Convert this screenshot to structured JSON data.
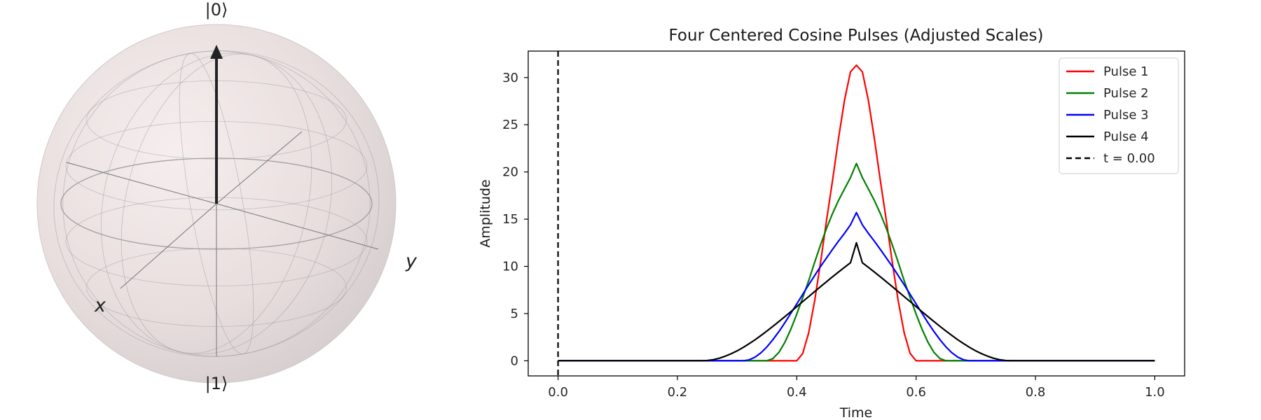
{
  "bloch": {
    "top_label": "|0⟩",
    "bottom_label": "|1⟩",
    "x_label": "x",
    "y_label": "y",
    "state_vector": [
      0,
      0,
      1
    ],
    "sphere_color": "#efe4e4",
    "wire_color": "#9a9a9a",
    "arrow_color": "#222222"
  },
  "chart_data": {
    "type": "line",
    "title": "Four Centered Cosine Pulses (Adjusted Scales)",
    "xlabel": "Time",
    "ylabel": "Amplitude",
    "xlim": [
      -0.05,
      1.05
    ],
    "ylim": [
      -1.6,
      32.8
    ],
    "xticks": [
      0.0,
      0.2,
      0.4,
      0.6,
      0.8,
      1.0
    ],
    "xtick_labels": [
      "0.0",
      "0.2",
      "0.4",
      "0.6",
      "0.8",
      "1.0"
    ],
    "yticks": [
      0,
      5,
      10,
      15,
      20,
      25,
      30
    ],
    "ytick_labels": [
      "0",
      "5",
      "10",
      "15",
      "20",
      "25",
      "30"
    ],
    "legend_position": "top-right",
    "x": [
      0.0,
      0.24,
      0.25,
      0.26,
      0.27,
      0.28,
      0.29,
      0.3,
      0.31,
      0.32,
      0.33,
      0.34,
      0.35,
      0.36,
      0.37,
      0.38,
      0.39,
      0.4,
      0.41,
      0.42,
      0.43,
      0.44,
      0.45,
      0.46,
      0.47,
      0.48,
      0.49,
      0.5,
      0.51,
      0.52,
      0.53,
      0.54,
      0.55,
      0.56,
      0.57,
      0.58,
      0.59,
      0.6,
      0.61,
      0.62,
      0.63,
      0.64,
      0.65,
      0.66,
      0.67,
      0.68,
      0.69,
      0.7,
      0.71,
      0.72,
      0.73,
      0.74,
      0.75,
      0.76,
      1.0
    ],
    "series": [
      {
        "name": "Pulse 1",
        "color": "#ff0000",
        "values": [
          0,
          0,
          0,
          0,
          0,
          0,
          0,
          0,
          0,
          0,
          0,
          0,
          0,
          0,
          0,
          0,
          0,
          0,
          0.77,
          2.98,
          6.36,
          10.48,
          14.9,
          19.1,
          23.54,
          27.6,
          30.6,
          31.3,
          30.6,
          27.6,
          23.54,
          19.1,
          14.9,
          10.48,
          6.36,
          2.98,
          0.77,
          0,
          0,
          0,
          0,
          0,
          0,
          0,
          0,
          0,
          0,
          0,
          0,
          0,
          0,
          0,
          0,
          0,
          0
        ]
      },
      {
        "name": "Pulse 2",
        "color": "#008000",
        "values": [
          0,
          0,
          0,
          0,
          0,
          0,
          0,
          0,
          0,
          0,
          0,
          0,
          0,
          0.23,
          0.89,
          1.95,
          3.33,
          4.94,
          6.69,
          8.5,
          10.44,
          12.3,
          14.04,
          15.6,
          16.98,
          18.2,
          19.4,
          20.9,
          19.4,
          18.2,
          16.98,
          15.6,
          14.04,
          12.3,
          10.44,
          8.5,
          6.69,
          4.94,
          3.33,
          1.95,
          0.89,
          0.23,
          0,
          0,
          0,
          0,
          0,
          0,
          0,
          0,
          0,
          0,
          0,
          0,
          0
        ]
      },
      {
        "name": "Pulse 3",
        "color": "#0000ff",
        "values": [
          0,
          0,
          0,
          0,
          0,
          0,
          0,
          0,
          0,
          0.1,
          0.38,
          0.85,
          1.47,
          2.23,
          3.09,
          4.03,
          5.02,
          6.02,
          7.03,
          8.06,
          9.03,
          10.0,
          10.9,
          11.8,
          12.67,
          13.5,
          14.4,
          15.7,
          14.4,
          13.5,
          12.67,
          11.8,
          10.9,
          10.0,
          9.03,
          8.06,
          7.03,
          6.02,
          5.02,
          4.03,
          3.09,
          2.23,
          1.47,
          0.85,
          0.38,
          0.1,
          0,
          0,
          0,
          0,
          0,
          0,
          0,
          0,
          0
        ]
      },
      {
        "name": "Pulse 4",
        "color": "#000000",
        "values": [
          0,
          0,
          0.03,
          0.12,
          0.27,
          0.48,
          0.74,
          1.05,
          1.41,
          1.8,
          2.22,
          2.68,
          3.15,
          3.64,
          4.15,
          4.67,
          5.2,
          5.73,
          6.27,
          6.8,
          7.33,
          7.86,
          8.38,
          8.9,
          9.4,
          9.9,
          10.38,
          12.5,
          10.38,
          9.9,
          9.4,
          8.9,
          8.38,
          7.86,
          7.33,
          6.8,
          6.27,
          5.73,
          5.2,
          4.67,
          4.15,
          3.64,
          3.15,
          2.68,
          2.22,
          1.8,
          1.41,
          1.05,
          0.74,
          0.48,
          0.27,
          0.12,
          0.03,
          0,
          0
        ]
      },
      {
        "name": "t = 0.00",
        "color": "#000000",
        "dashed": true,
        "vertical_line_x": 0.0
      }
    ]
  }
}
